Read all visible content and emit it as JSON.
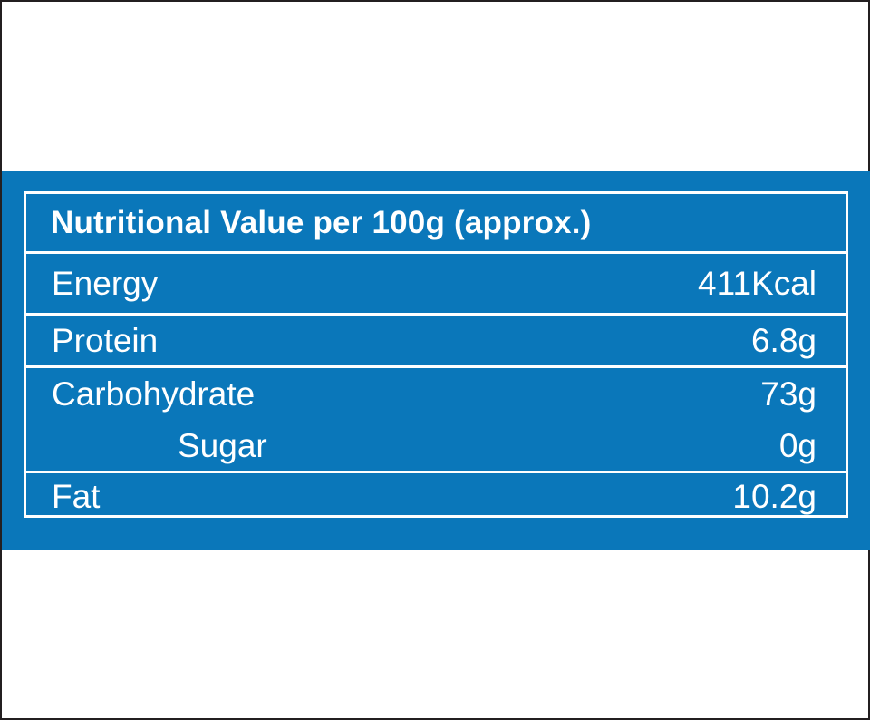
{
  "table": {
    "title": "Nutritional Value per 100g (approx.)",
    "rows": [
      {
        "label": "Energy",
        "value": "411Kcal"
      },
      {
        "label": "Protein",
        "value": "6.8g"
      },
      {
        "label": "Carbohydrate",
        "value": "73g"
      },
      {
        "label": "Sugar",
        "value": "0g"
      },
      {
        "label": "Fat",
        "value": "10.2g"
      }
    ]
  },
  "colors": {
    "band": "#0a77ba",
    "text": "#ffffff"
  }
}
